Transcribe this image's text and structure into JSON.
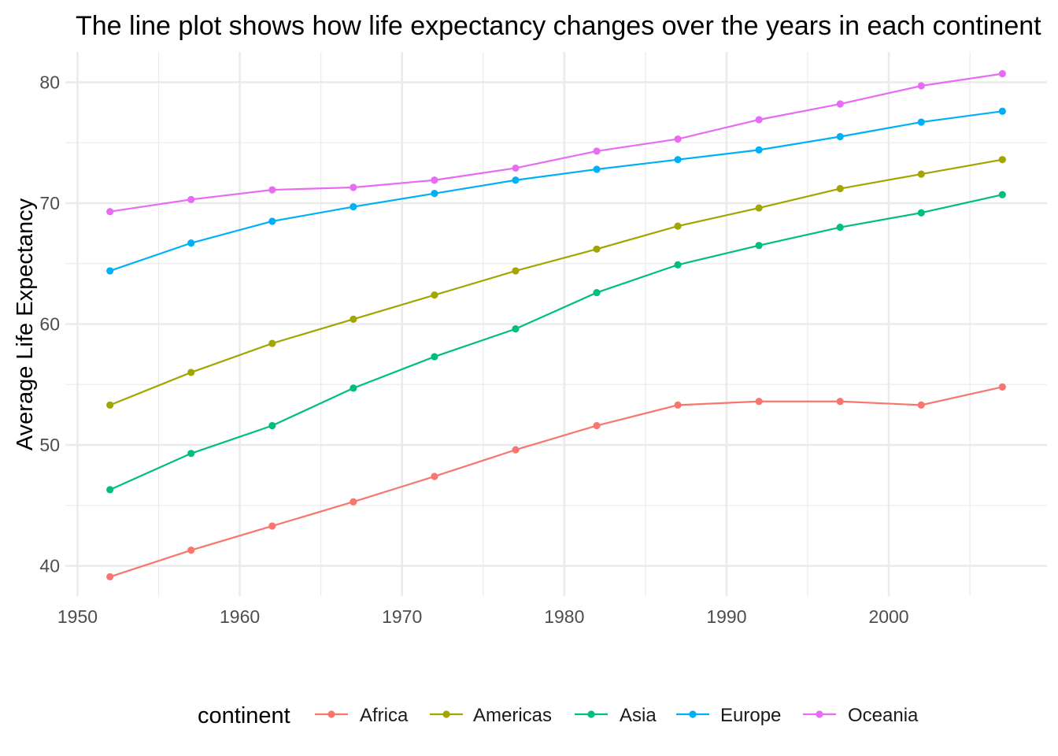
{
  "chart_data": {
    "type": "line",
    "title": "The line plot shows how life expectancy changes over the years in each continent",
    "xlabel": "",
    "ylabel": "Average Life Expectancy",
    "x": [
      1952,
      1957,
      1962,
      1967,
      1972,
      1977,
      1982,
      1987,
      1992,
      1997,
      2002,
      2007
    ],
    "xlim": [
      1949.25,
      2009.75
    ],
    "ylim": [
      37.5,
      82.5
    ],
    "x_ticks": [
      1950,
      1960,
      1970,
      1980,
      1990,
      2000
    ],
    "y_ticks": [
      40,
      50,
      60,
      70,
      80
    ],
    "grid": true,
    "legend_title": "continent",
    "legend_position": "bottom",
    "series": [
      {
        "name": "Africa",
        "color": "#F8766D",
        "values": [
          39.1,
          41.3,
          43.3,
          45.3,
          47.4,
          49.6,
          51.6,
          53.3,
          53.6,
          53.6,
          53.3,
          54.8
        ]
      },
      {
        "name": "Americas",
        "color": "#A3A500",
        "values": [
          53.3,
          56.0,
          58.4,
          60.4,
          62.4,
          64.4,
          66.2,
          68.1,
          69.6,
          71.2,
          72.4,
          73.6
        ]
      },
      {
        "name": "Asia",
        "color": "#00BF7D",
        "values": [
          46.3,
          49.3,
          51.6,
          54.7,
          57.3,
          59.6,
          62.6,
          64.9,
          66.5,
          68.0,
          69.2,
          70.7
        ]
      },
      {
        "name": "Europe",
        "color": "#00B0F6",
        "values": [
          64.4,
          66.7,
          68.5,
          69.7,
          70.8,
          71.9,
          72.8,
          73.6,
          74.4,
          75.5,
          76.7,
          77.6
        ]
      },
      {
        "name": "Oceania",
        "color": "#E76BF3",
        "values": [
          69.3,
          70.3,
          71.1,
          71.3,
          71.9,
          72.9,
          74.3,
          75.3,
          76.9,
          78.2,
          79.7,
          80.7
        ]
      }
    ]
  }
}
